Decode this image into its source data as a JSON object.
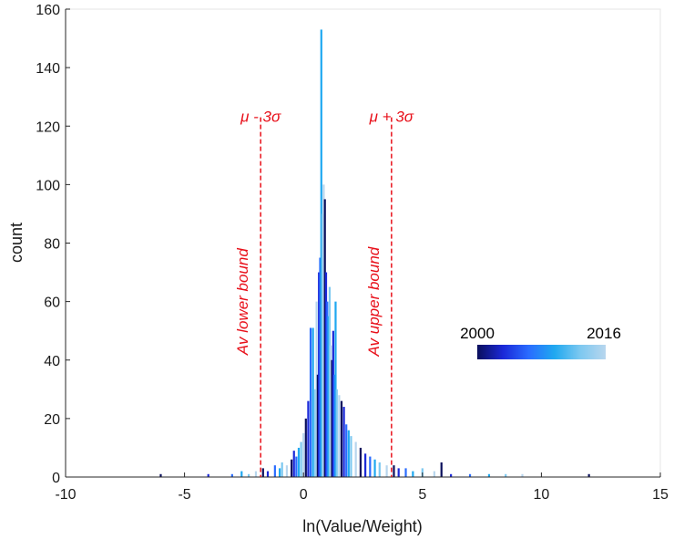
{
  "chart_data": {
    "type": "bar",
    "subtype": "histogram",
    "title": "",
    "xlabel": "ln(Value/Weight)",
    "ylabel": "count",
    "xlim": [
      -10,
      15
    ],
    "ylim": [
      0,
      160
    ],
    "xticks": [
      -10,
      -5,
      0,
      5,
      10,
      15
    ],
    "yticks": [
      0,
      20,
      40,
      60,
      80,
      100,
      120,
      140,
      160
    ],
    "grid": false,
    "series_encoding": "year colour gradient (2000 dark navy to 2016 light blue)",
    "colorbar": {
      "min_label": "2000",
      "max_label": "2016",
      "colors": [
        "#0a0f5c",
        "#1a28d8",
        "#2a6cff",
        "#1fa8f0",
        "#7cc8f0",
        "#b8d6ee"
      ]
    },
    "bars": [
      {
        "x": -6.0,
        "y": 1
      },
      {
        "x": -4.0,
        "y": 1
      },
      {
        "x": -3.0,
        "y": 1
      },
      {
        "x": -2.6,
        "y": 2
      },
      {
        "x": -2.3,
        "y": 1
      },
      {
        "x": -2.0,
        "y": 2
      },
      {
        "x": -1.7,
        "y": 3
      },
      {
        "x": -1.5,
        "y": 2
      },
      {
        "x": -1.2,
        "y": 4
      },
      {
        "x": -1.0,
        "y": 3
      },
      {
        "x": -0.9,
        "y": 5
      },
      {
        "x": -0.7,
        "y": 4
      },
      {
        "x": -0.5,
        "y": 6
      },
      {
        "x": -0.4,
        "y": 9
      },
      {
        "x": -0.3,
        "y": 7
      },
      {
        "x": -0.2,
        "y": 10
      },
      {
        "x": -0.1,
        "y": 12
      },
      {
        "x": 0.0,
        "y": 15
      },
      {
        "x": 0.1,
        "y": 20
      },
      {
        "x": 0.2,
        "y": 26
      },
      {
        "x": 0.3,
        "y": 51
      },
      {
        "x": 0.4,
        "y": 51
      },
      {
        "x": 0.5,
        "y": 30
      },
      {
        "x": 0.55,
        "y": 60
      },
      {
        "x": 0.6,
        "y": 35
      },
      {
        "x": 0.65,
        "y": 70
      },
      {
        "x": 0.7,
        "y": 75
      },
      {
        "x": 0.75,
        "y": 153
      },
      {
        "x": 0.8,
        "y": 90
      },
      {
        "x": 0.85,
        "y": 100
      },
      {
        "x": 0.9,
        "y": 95
      },
      {
        "x": 0.95,
        "y": 70
      },
      {
        "x": 1.0,
        "y": 60
      },
      {
        "x": 1.05,
        "y": 55
      },
      {
        "x": 1.1,
        "y": 65
      },
      {
        "x": 1.15,
        "y": 45
      },
      {
        "x": 1.2,
        "y": 40
      },
      {
        "x": 1.25,
        "y": 50
      },
      {
        "x": 1.3,
        "y": 35
      },
      {
        "x": 1.35,
        "y": 60
      },
      {
        "x": 1.4,
        "y": 30
      },
      {
        "x": 1.5,
        "y": 28
      },
      {
        "x": 1.6,
        "y": 26
      },
      {
        "x": 1.7,
        "y": 24
      },
      {
        "x": 1.8,
        "y": 18
      },
      {
        "x": 1.9,
        "y": 16
      },
      {
        "x": 2.0,
        "y": 14
      },
      {
        "x": 2.2,
        "y": 12
      },
      {
        "x": 2.4,
        "y": 10
      },
      {
        "x": 2.6,
        "y": 8
      },
      {
        "x": 2.8,
        "y": 7
      },
      {
        "x": 3.0,
        "y": 6
      },
      {
        "x": 3.2,
        "y": 5
      },
      {
        "x": 3.5,
        "y": 4
      },
      {
        "x": 3.8,
        "y": 4
      },
      {
        "x": 4.0,
        "y": 3
      },
      {
        "x": 4.3,
        "y": 3
      },
      {
        "x": 4.6,
        "y": 2
      },
      {
        "x": 5.0,
        "y": 3
      },
      {
        "x": 5.5,
        "y": 2
      },
      {
        "x": 5.8,
        "y": 5
      },
      {
        "x": 6.2,
        "y": 1
      },
      {
        "x": 7.0,
        "y": 1
      },
      {
        "x": 7.8,
        "y": 1
      },
      {
        "x": 8.5,
        "y": 1
      },
      {
        "x": 9.2,
        "y": 1
      },
      {
        "x": 12.0,
        "y": 1
      }
    ],
    "reference_lines": [
      {
        "x": -1.8,
        "top_label": "μ - 3σ",
        "side_label": "Av lower bound"
      },
      {
        "x": 3.7,
        "top_label": "μ + 3σ",
        "side_label": "Av upper bound"
      }
    ],
    "reference_color": "#e8101a"
  }
}
